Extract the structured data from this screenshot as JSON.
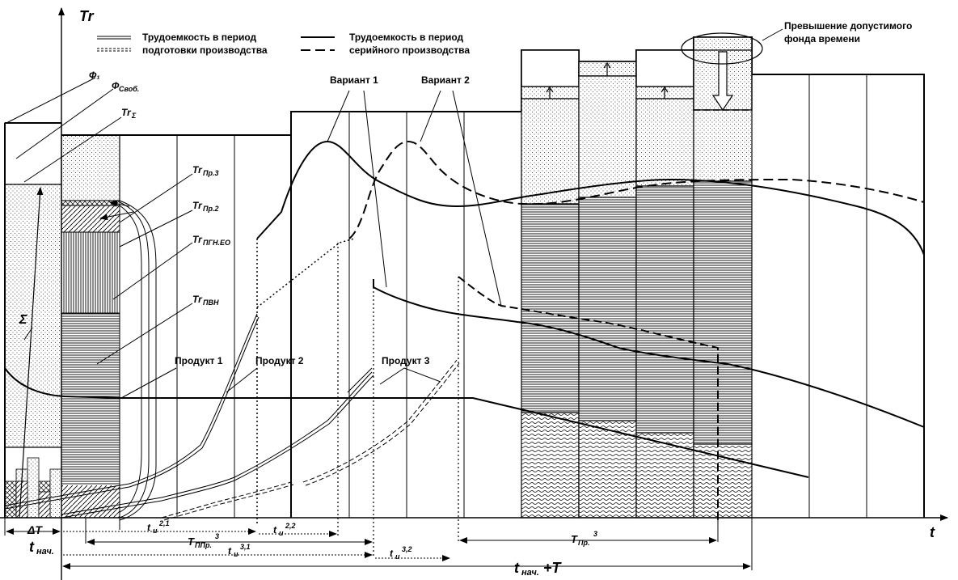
{
  "axes": {
    "y_label": "Tr",
    "x_label": "t"
  },
  "legend": {
    "prep_label_line1": "Трудоемкость в период",
    "prep_label_line2": "подготовки производства",
    "serial_label_line1": "Трудоемкость в период",
    "serial_label_line2": "серийного производства"
  },
  "callout": {
    "line1": "Превышение  допустимого",
    "line2": "фонда времени"
  },
  "variants": {
    "v1": "Вариант 1",
    "v2": "Вариант 2"
  },
  "products": {
    "p1": "Продукт 1",
    "p2": "Продукт 2",
    "p3": "Продукт 3"
  },
  "left_labels": {
    "phi1": "Ф₁",
    "phi_free": "Ф",
    "phi_free_sub": "Своб.",
    "tr_sum": "Tr",
    "tr_sum_sub": "Σ",
    "sigma": "Σ"
  },
  "legend_small": {
    "tr_pr3": "Tr",
    "tr_pr3_sub": "Пр.3",
    "tr_pr2": "Tr",
    "tr_pr2_sub": "Пр.2",
    "tr_pgn": "Tr",
    "tr_pgn_sub": "ПГН.ЕО",
    "tr_pvn": "Tr",
    "tr_pvn_sub": "ПВН"
  },
  "time_labels": {
    "delta_t": "ΔT",
    "t_start": "t",
    "t_start_sub": "нач.",
    "t_end": "t",
    "t_end_sub": "нач.",
    "t_end_suffix": "+T",
    "tu": "t",
    "tu_sub": "и",
    "tu21_sup": "2,1",
    "tu22_sup": "2,2",
    "tu31_sup": "3,1",
    "tu32_sup": "3,2",
    "tppr": "T",
    "tppr_sub": "ППр.",
    "tppr_sup": "3",
    "tpr": "T",
    "tpr_sub": "Пр.",
    "tpr_sup": "3"
  }
}
